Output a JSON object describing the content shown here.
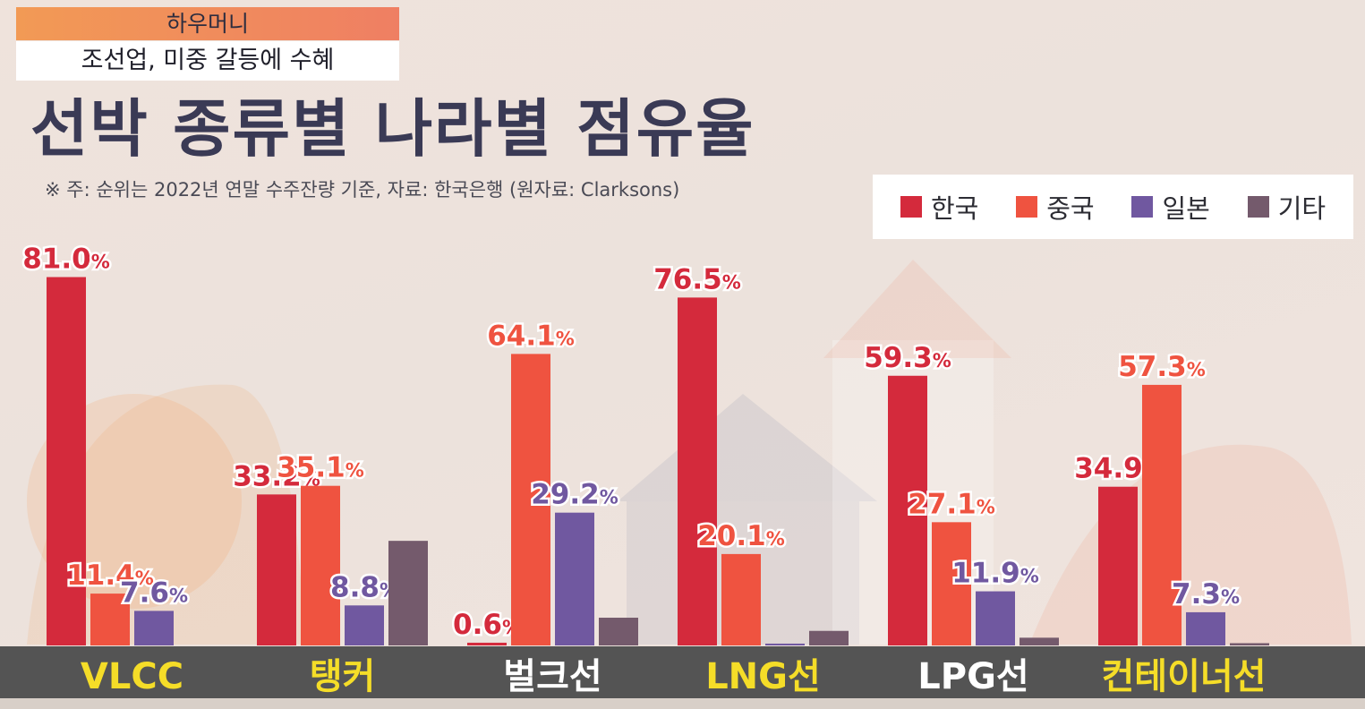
{
  "header": {
    "tag": "하우머니",
    "subtitle": "조선업, 미중 갈등에 수혜",
    "title": "선박 종류별 나라별 점유율",
    "note": "※ 주: 순위는 2022년 연말 수주잔량 기준, 자료: 한국은행 (원자료: Clarksons)"
  },
  "legend": [
    {
      "label": "한국",
      "color": "#d42a3c"
    },
    {
      "label": "중국",
      "color": "#ef5340"
    },
    {
      "label": "일본",
      "color": "#7058a0"
    },
    {
      "label": "기타",
      "color": "#745a6c"
    }
  ],
  "chart_data": {
    "type": "bar",
    "title": "선박 종류별 나라별 점유율",
    "categories": [
      "VLCC",
      "탱커",
      "벌크선",
      "LNG선",
      "LPG선",
      "컨테이너선"
    ],
    "category_colors": [
      "#f5dd28",
      "#f5dd28",
      "#ffffff",
      "#f5dd28",
      "#ffffff",
      "#f5dd28"
    ],
    "ylim": [
      0,
      100
    ],
    "unit": "%",
    "series": [
      {
        "name": "한국",
        "color": "#d42a3c",
        "values": [
          81.0,
          33.2,
          0.6,
          76.5,
          59.3,
          34.9
        ],
        "labels": [
          "81.0",
          "33.2",
          "0.6",
          "76.5",
          "59.3",
          "34.9"
        ]
      },
      {
        "name": "중국",
        "color": "#ef5340",
        "values": [
          11.4,
          35.1,
          64.1,
          20.1,
          27.1,
          57.3
        ],
        "labels": [
          "11.4",
          "35.1",
          "64.1",
          "20.1",
          "27.1",
          "57.3"
        ]
      },
      {
        "name": "일본",
        "color": "#7058a0",
        "values": [
          7.6,
          8.8,
          29.2,
          0.4,
          11.9,
          7.3
        ],
        "labels": [
          "7.6",
          "8.8",
          "29.2",
          "",
          "11.9",
          "7.3"
        ]
      },
      {
        "name": "기타",
        "color": "#745a6c",
        "values": [
          0,
          23.0,
          6.1,
          3.2,
          1.7,
          0.5
        ],
        "labels": [
          "",
          "",
          "",
          "",
          "",
          ""
        ]
      }
    ]
  }
}
